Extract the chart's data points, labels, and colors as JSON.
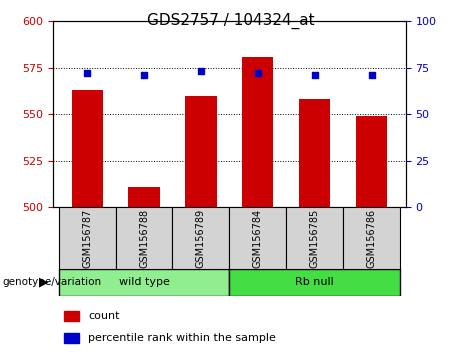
{
  "title": "GDS2757 / 104324_at",
  "samples": [
    "GSM156787",
    "GSM156788",
    "GSM156789",
    "GSM156784",
    "GSM156785",
    "GSM156786"
  ],
  "count_values": [
    563,
    511,
    560,
    581,
    558,
    549
  ],
  "percentile_values": [
    72,
    71,
    73,
    72,
    71,
    71
  ],
  "ylim_left": [
    500,
    600
  ],
  "ylim_right": [
    0,
    100
  ],
  "yticks_left": [
    500,
    525,
    550,
    575,
    600
  ],
  "yticks_right": [
    0,
    25,
    50,
    75,
    100
  ],
  "bar_color": "#cc0000",
  "marker_color": "#0000cc",
  "groups": [
    {
      "label": "wild type",
      "n_samples": 3,
      "color": "#90ee90"
    },
    {
      "label": "Rb null",
      "n_samples": 3,
      "color": "#44dd44"
    }
  ],
  "genotype_label": "genotype/variation",
  "legend_items": [
    {
      "label": "count",
      "color": "#cc0000"
    },
    {
      "label": "percentile rank within the sample",
      "color": "#0000cc"
    }
  ],
  "cell_bg_color": "#d3d3d3",
  "title_fontsize": 11,
  "tick_fontsize": 8,
  "sample_fontsize": 7,
  "geno_fontsize": 8,
  "legend_fontsize": 8
}
